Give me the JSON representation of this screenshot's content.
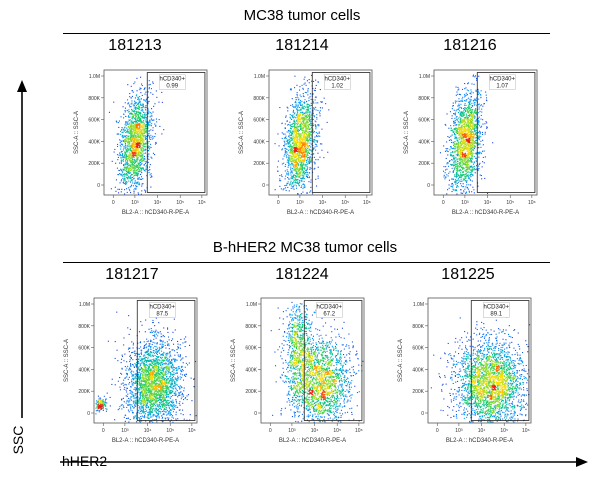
{
  "sections": [
    {
      "title": "MC38 tumor cells"
    },
    {
      "title": "B-hHER2 MC38 tumor cells"
    }
  ],
  "outer_axes": {
    "y": "SSC",
    "x": "hHER2"
  },
  "axis_labels": {
    "x": "BL2-A :: hCD340-R-PE-A",
    "y": "SSC-A :: SSC-A"
  },
  "y_ticks": [
    "1.0M",
    "800K",
    "600K",
    "400K",
    "200K",
    "0"
  ],
  "x_ticks": [
    "0",
    "10³",
    "10⁴",
    "10⁵",
    "10⁶"
  ],
  "gate_name": "hCD340+",
  "chart_data": [
    {
      "type": "scatter",
      "sample_id": "181213",
      "group": "MC38 tumor cells",
      "gate": "hCD340+",
      "gate_percent": "0.99",
      "population": "negative",
      "xlabel": "BL2-A :: hCD340-R-PE-A",
      "ylabel": "SSC-A :: SSC-A"
    },
    {
      "type": "scatter",
      "sample_id": "181214",
      "group": "MC38 tumor cells",
      "gate": "hCD340+",
      "gate_percent": "1.02",
      "population": "negative",
      "xlabel": "BL2-A :: hCD340-R-PE-A",
      "ylabel": "SSC-A :: SSC-A"
    },
    {
      "type": "scatter",
      "sample_id": "181216",
      "group": "MC38 tumor cells",
      "gate": "hCD340+",
      "gate_percent": "1.07",
      "population": "negative",
      "xlabel": "BL2-A :: hCD340-R-PE-A",
      "ylabel": "SSC-A :: SSC-A"
    },
    {
      "type": "scatter",
      "sample_id": "181217",
      "group": "B-hHER2 MC38 tumor cells",
      "gate": "hCD340+",
      "gate_percent": "87.5",
      "population": "positive",
      "xlabel": "BL2-A :: hCD340-R-PE-A",
      "ylabel": "SSC-A :: SSC-A"
    },
    {
      "type": "scatter",
      "sample_id": "181224",
      "group": "B-hHER2 MC38 tumor cells",
      "gate": "hCD340+",
      "gate_percent": "67.2",
      "population": "positive",
      "xlabel": "BL2-A :: hCD340-R-PE-A",
      "ylabel": "SSC-A :: SSC-A"
    },
    {
      "type": "scatter",
      "sample_id": "181225",
      "group": "B-hHER2 MC38 tumor cells",
      "gate": "hCD340+",
      "gate_percent": "89.1",
      "population": "positive",
      "xlabel": "BL2-A :: hCD340-R-PE-A",
      "ylabel": "SSC-A :: SSC-A"
    }
  ]
}
